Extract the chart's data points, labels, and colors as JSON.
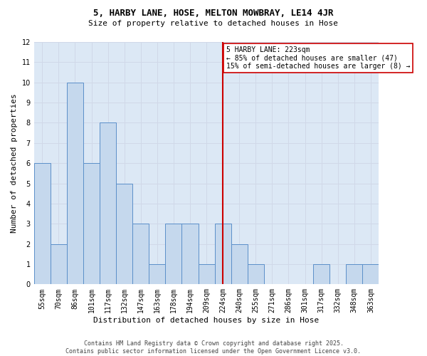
{
  "title": "5, HARBY LANE, HOSE, MELTON MOWBRAY, LE14 4JR",
  "subtitle": "Size of property relative to detached houses in Hose",
  "xlabel": "Distribution of detached houses by size in Hose",
  "ylabel": "Number of detached properties",
  "bins": [
    "55sqm",
    "70sqm",
    "86sqm",
    "101sqm",
    "117sqm",
    "132sqm",
    "147sqm",
    "163sqm",
    "178sqm",
    "194sqm",
    "209sqm",
    "224sqm",
    "240sqm",
    "255sqm",
    "271sqm",
    "286sqm",
    "301sqm",
    "317sqm",
    "332sqm",
    "348sqm",
    "363sqm"
  ],
  "values": [
    6,
    2,
    10,
    6,
    8,
    5,
    3,
    1,
    3,
    3,
    1,
    3,
    2,
    1,
    0,
    0,
    0,
    1,
    0,
    1,
    1
  ],
  "bar_color": "#c5d8ed",
  "bar_edge_color": "#5b8fc9",
  "ref_line_bin": 11,
  "ref_line_label": "5 HARBY LANE: 223sqm",
  "ref_pct_smaller": "← 85% of detached houses are smaller (47)",
  "ref_pct_larger": "15% of semi-detached houses are larger (8) →",
  "ref_line_color": "#cc0000",
  "annotation_box_color": "#cc0000",
  "ylim": [
    0,
    12
  ],
  "yticks": [
    0,
    1,
    2,
    3,
    4,
    5,
    6,
    7,
    8,
    9,
    10,
    11,
    12
  ],
  "grid_color": "#d0d8e8",
  "bg_color": "#dce8f5",
  "title_fontsize": 9,
  "subtitle_fontsize": 8,
  "tick_fontsize": 7,
  "ylabel_fontsize": 8,
  "xlabel_fontsize": 8,
  "ann_fontsize": 7,
  "footer1": "Contains HM Land Registry data © Crown copyright and database right 2025.",
  "footer2": "Contains public sector information licensed under the Open Government Licence v3.0.",
  "footer_fontsize": 6
}
